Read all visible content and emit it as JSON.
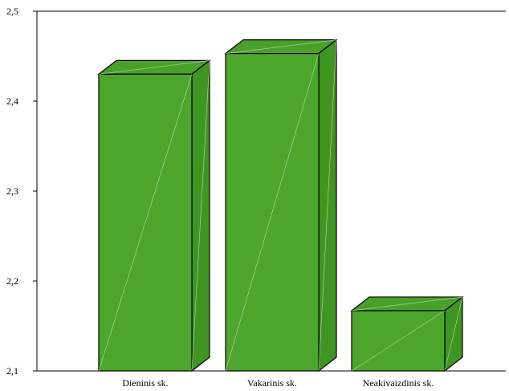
{
  "chart_data": {
    "type": "bar",
    "style": "3d",
    "categories": [
      "Dieninis sk.",
      "Vakarinis sk.",
      "Neakivaizdinis sk."
    ],
    "values": [
      2.43,
      2.453,
      2.167
    ],
    "ylim": [
      2.1,
      2.5
    ],
    "yticks": [
      "2,1",
      "2,2",
      "2,3",
      "2,4",
      "2,5"
    ],
    "ytick_values": [
      2.1,
      2.2,
      2.3,
      2.4,
      2.5
    ],
    "title": "",
    "xlabel": "",
    "ylabel": "",
    "grid": false,
    "colors": {
      "bar_front": "#4da62c",
      "bar_top": "#49a02a",
      "bar_side": "#3f9522",
      "outline": "#000000",
      "diagonal": "#b8e0a6"
    }
  }
}
